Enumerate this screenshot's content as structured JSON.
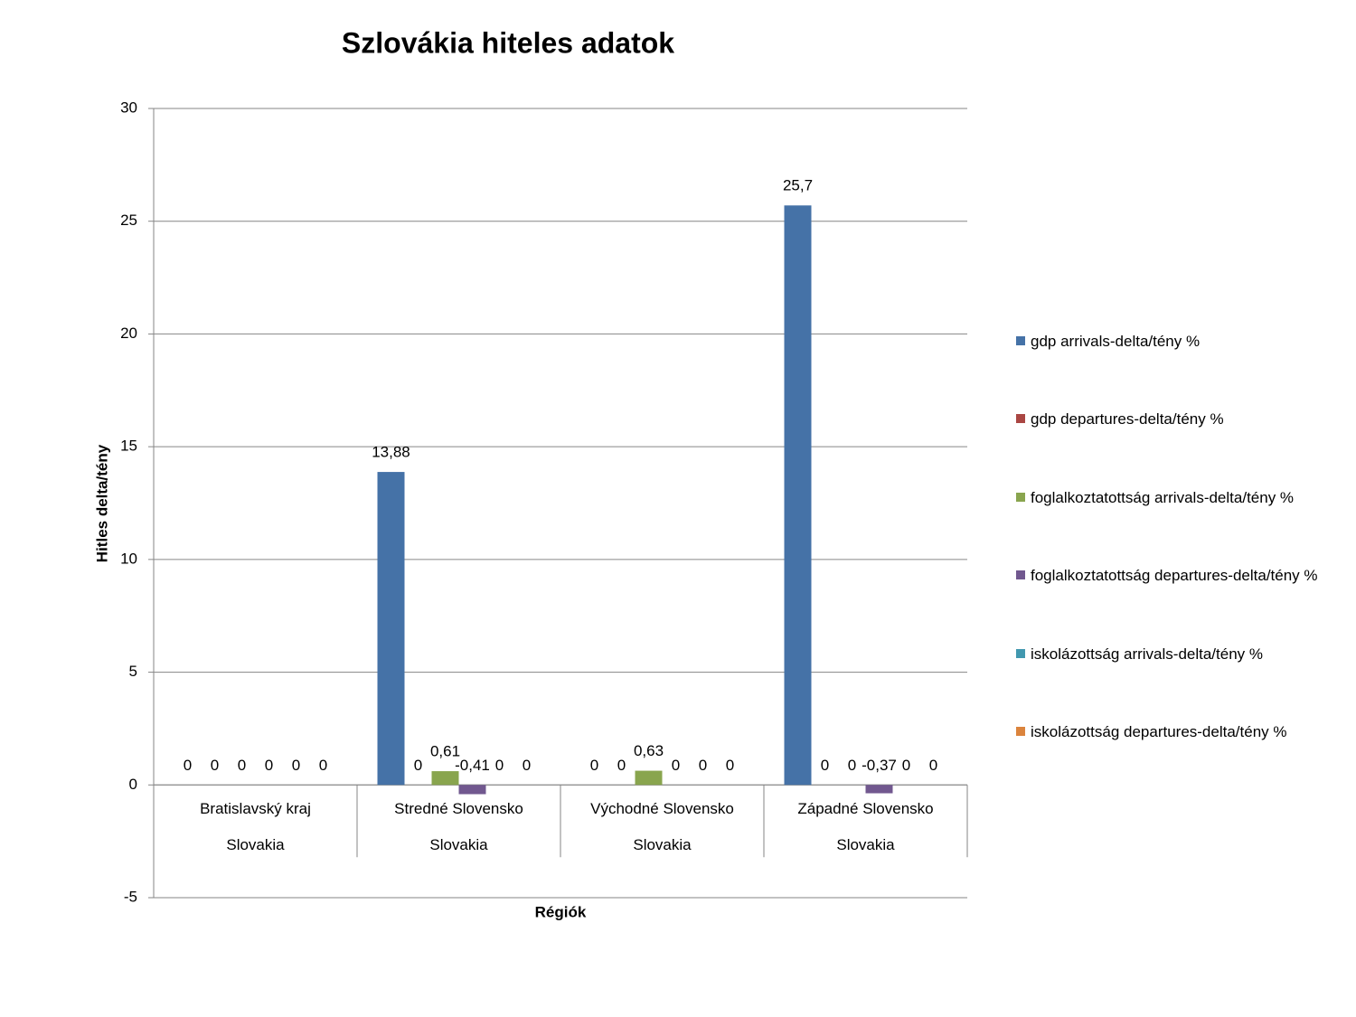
{
  "chart_data": {
    "type": "bar",
    "title": "Szlovákia hiteles adatok",
    "x_label": "Régiók",
    "y_label": "Hitles delta/tény",
    "categories": [
      "Bratislavský kraj",
      "Stredné Slovensko",
      "Východné Slovensko",
      "Západné Slovensko"
    ],
    "category_groups": [
      "Slovakia",
      "Slovakia",
      "Slovakia",
      "Slovakia"
    ],
    "series": [
      {
        "name": "gdp arrivals-delta/tény %",
        "color": "#4572A7",
        "values": [
          0,
          13.88,
          0,
          25.7
        ],
        "value_labels": [
          "0",
          "13,88",
          "0",
          "25,7"
        ]
      },
      {
        "name": "gdp departures-delta/tény %",
        "color": "#AA4643",
        "values": [
          0,
          0,
          0,
          0
        ],
        "value_labels": [
          "0",
          "0",
          "0",
          "0"
        ]
      },
      {
        "name": "foglalkoztatottság arrivals-delta/tény %",
        "color": "#89A54E",
        "values": [
          0,
          0.61,
          0.63,
          0
        ],
        "value_labels": [
          "0",
          "0,61",
          "0,63",
          "0"
        ]
      },
      {
        "name": "foglalkoztatottság departures-delta/tény %",
        "color": "#71588F",
        "values": [
          0,
          -0.41,
          0,
          -0.37
        ],
        "value_labels": [
          "0",
          "-0,41",
          "0",
          "-0,37"
        ]
      },
      {
        "name": "iskolázottság arrivals-delta/tény %",
        "color": "#4198AF",
        "values": [
          0,
          0,
          0,
          0
        ],
        "value_labels": [
          "0",
          "0",
          "0",
          "0"
        ]
      },
      {
        "name": "iskolázottság departures-delta/tény %",
        "color": "#DB843D",
        "values": [
          0,
          0,
          0,
          0
        ],
        "value_labels": [
          "0",
          "0",
          "0",
          "0"
        ]
      }
    ],
    "ylim": [
      -5,
      30
    ],
    "yticks": [
      -5,
      0,
      5,
      10,
      15,
      20,
      25,
      30
    ],
    "grid": true,
    "legend": "right"
  }
}
